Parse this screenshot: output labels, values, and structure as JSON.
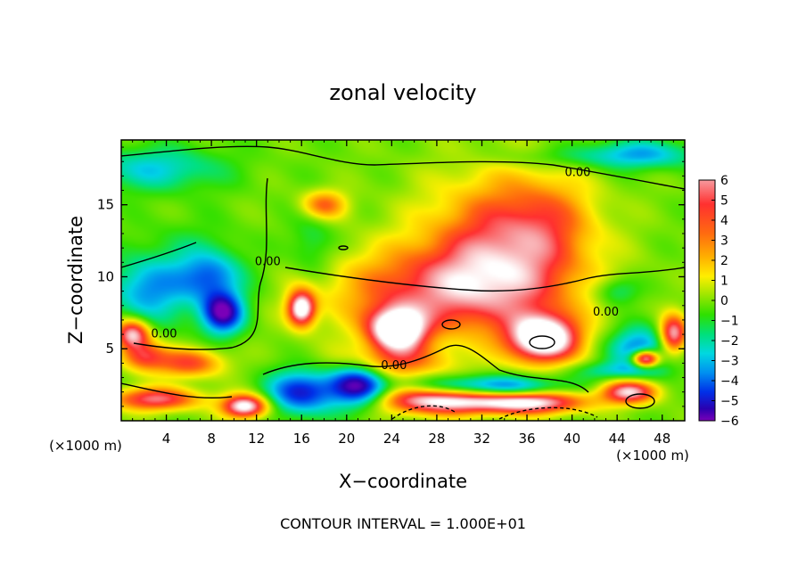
{
  "chart_data": {
    "type": "heatmap",
    "title": "zonal velocity",
    "xlabel": "X−coordinate",
    "ylabel": "Z−coordinate",
    "x_unit_label": "(×1000 m)",
    "y_unit_label": "(×1000 m)",
    "footer": "CONTOUR INTERVAL = 1.000E+01",
    "xlim": [
      0,
      50
    ],
    "ylim": [
      0,
      19.5
    ],
    "xticks": [
      4,
      8,
      12,
      16,
      20,
      24,
      28,
      32,
      36,
      40,
      44,
      48
    ],
    "xtick_labels": [
      "4",
      "8",
      "12",
      "16",
      "20",
      "24",
      "28",
      "32",
      "36",
      "40",
      "44",
      "48"
    ],
    "yticks": [
      5,
      10,
      15
    ],
    "ytick_labels": [
      "5",
      "10",
      "15"
    ],
    "colorbar": {
      "range": [
        -6,
        6
      ],
      "ticks": [
        6,
        5,
        4,
        3,
        2,
        1,
        0,
        -1,
        -2,
        -3,
        -4,
        -5,
        -6
      ],
      "tick_labels": [
        "6",
        "5",
        "4",
        "3",
        "2",
        "1",
        "0",
        "−1",
        "−2",
        "−3",
        "−4",
        "−5",
        "−6"
      ]
    },
    "contour_labels": [
      {
        "text": "0.00",
        "x": 40.5,
        "y": 17.0
      },
      {
        "text": "0.00",
        "x": 13.0,
        "y": 10.8
      },
      {
        "text": "0.00",
        "x": 3.8,
        "y": 5.8
      },
      {
        "text": "0.00",
        "x": 24.2,
        "y": 3.6
      },
      {
        "text": "0.00",
        "x": 43.0,
        "y": 7.3
      }
    ],
    "features": [
      {
        "x": 3,
        "z": 17.5,
        "sx": 6,
        "sz": 1.5,
        "v": -2.5
      },
      {
        "x": 46,
        "z": 18.5,
        "sx": 5,
        "sz": 1.0,
        "v": -3
      },
      {
        "x": 38,
        "z": 18.3,
        "sx": 6,
        "sz": 0.8,
        "v": -1
      },
      {
        "x": 6,
        "z": 10,
        "sx": 5,
        "sz": 3,
        "v": -2
      },
      {
        "x": 2,
        "z": 9,
        "sx": 3,
        "sz": 2,
        "v": -2.5
      },
      {
        "x": 9,
        "z": 7.5,
        "sx": 1.8,
        "sz": 1.4,
        "v": -6
      },
      {
        "x": 8,
        "z": 10,
        "sx": 2.5,
        "sz": 1.5,
        "v": -2.5
      },
      {
        "x": 18,
        "z": 15,
        "sx": 2,
        "sz": 1.0,
        "v": 3.5
      },
      {
        "x": 34,
        "z": 12,
        "sx": 7,
        "sz": 5,
        "v": 4.5
      },
      {
        "x": 28,
        "z": 9,
        "sx": 10,
        "sz": 3,
        "v": 4
      },
      {
        "x": 38,
        "z": 14,
        "sx": 4,
        "sz": 3,
        "v": 1.5
      },
      {
        "x": 16,
        "z": 7.8,
        "sx": 1.2,
        "sz": 1.2,
        "v": 7
      },
      {
        "x": 24.5,
        "z": 6.3,
        "sx": 2.5,
        "sz": 1.5,
        "v": 8
      },
      {
        "x": 37.5,
        "z": 5.7,
        "sx": 3,
        "sz": 1.6,
        "v": 8
      },
      {
        "x": 24,
        "z": 4,
        "sx": 5,
        "sz": 1.2,
        "v": 3
      },
      {
        "x": 21,
        "z": 2.5,
        "sx": 2.5,
        "sz": 1.5,
        "v": -6
      },
      {
        "x": 28,
        "z": 1.5,
        "sx": 5,
        "sz": 1,
        "v": 7
      },
      {
        "x": 36,
        "z": 1.3,
        "sx": 5,
        "sz": 0.8,
        "v": 7
      },
      {
        "x": 32,
        "z": 2.3,
        "sx": 7,
        "sz": 0.8,
        "v": -5
      },
      {
        "x": 16,
        "z": 2,
        "sx": 3,
        "sz": 1.5,
        "v": -5
      },
      {
        "x": 11,
        "z": 1,
        "sx": 2,
        "sz": 0.8,
        "v": 7
      },
      {
        "x": 3,
        "z": 1.5,
        "sx": 4,
        "sz": 0.8,
        "v": 5
      },
      {
        "x": 2,
        "z": 4.5,
        "sx": 2,
        "sz": 1,
        "v": 4
      },
      {
        "x": 6,
        "z": 4,
        "sx": 3,
        "sz": 1,
        "v": 4
      },
      {
        "x": 1,
        "z": 6,
        "sx": 1.5,
        "sz": 1,
        "v": 6
      },
      {
        "x": 45,
        "z": 2,
        "sx": 2.5,
        "sz": 0.8,
        "v": 6
      },
      {
        "x": 46,
        "z": 5,
        "sx": 2.5,
        "sz": 1.5,
        "v": -4
      },
      {
        "x": 46.5,
        "z": 4.3,
        "sx": 1.2,
        "sz": 0.6,
        "v": 8
      },
      {
        "x": 49,
        "z": 6,
        "sx": 1.2,
        "sz": 1.3,
        "v": 6
      },
      {
        "x": 44,
        "z": 9,
        "sx": 2,
        "sz": 1,
        "v": -2
      },
      {
        "x": 44,
        "z": 3.5,
        "sx": 4,
        "sz": 0.6,
        "v": -2
      },
      {
        "x": 17,
        "z": 12,
        "sx": 2,
        "sz": 2.5,
        "v": -1.5
      }
    ]
  }
}
